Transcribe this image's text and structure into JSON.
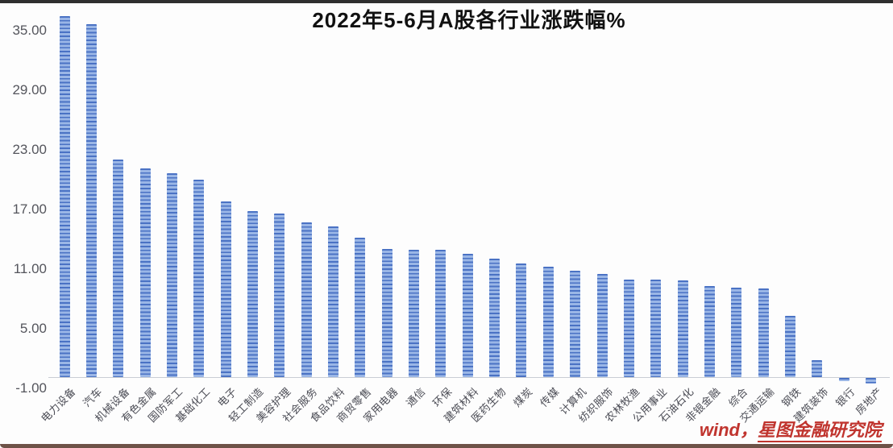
{
  "title": "2022年5-6月A股各行业涨跌幅%",
  "watermark": {
    "source": "wind，",
    "brand": "星图金融研究院"
  },
  "colors": {
    "bar_stripe_dark": "#4a72c4",
    "bar_stripe_light": "#9ab6e6",
    "title_text": "#111111",
    "axis_text": "#54555c",
    "watermark_red": "#c0342e"
  },
  "chart_data": {
    "type": "bar",
    "title": "2022年5-6月A股各行业涨跌幅%",
    "xlabel": "",
    "ylabel": "",
    "categories": [
      "电力设备",
      "汽车",
      "机械设备",
      "有色金属",
      "国防军工",
      "基础化工",
      "电子",
      "轻工制造",
      "美容护理",
      "社会服务",
      "食品饮料",
      "商贸零售",
      "家用电器",
      "通信",
      "环保",
      "建筑材料",
      "医药生物",
      "煤炭",
      "传媒",
      "计算机",
      "纺织服饰",
      "农林牧渔",
      "公用事业",
      "石油石化",
      "非银金融",
      "综合",
      "交通运输",
      "钢铁",
      "建筑装饰",
      "银行",
      "房地产"
    ],
    "values": [
      36.3,
      35.5,
      21.9,
      21.0,
      20.5,
      19.9,
      17.7,
      16.7,
      16.5,
      15.6,
      15.2,
      14.0,
      12.9,
      12.8,
      12.8,
      12.4,
      11.9,
      11.4,
      11.1,
      10.7,
      10.4,
      9.8,
      9.8,
      9.7,
      9.2,
      9.0,
      8.9,
      6.2,
      1.7,
      -0.3,
      -0.6
    ],
    "y_ticks": [
      35,
      29,
      23,
      17,
      11,
      5,
      -1
    ],
    "y_tick_format": "0.00",
    "ylim": [
      -1.5,
      38
    ],
    "grid": false,
    "legend": false,
    "bar_pattern": "horizontal-stripes"
  }
}
